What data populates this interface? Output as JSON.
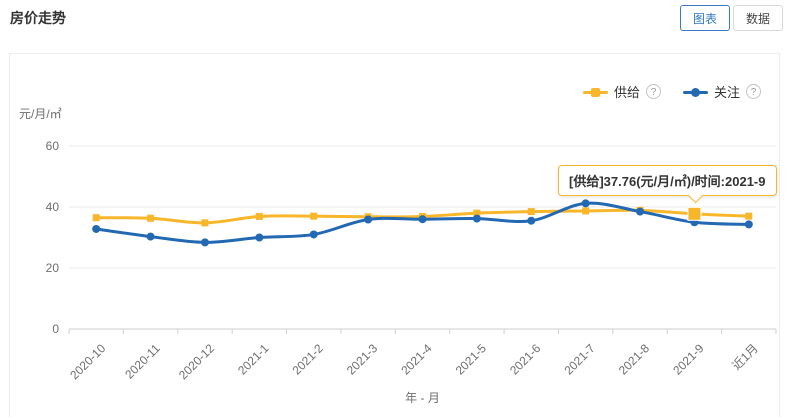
{
  "page": {
    "title": "房价走势"
  },
  "toolbar": {
    "chart_tab": "图表",
    "data_tab": "数据"
  },
  "legend": [
    {
      "label": "供给",
      "help_icon": "?",
      "color": "#f8b62b"
    },
    {
      "label": "关注",
      "help_icon": "?",
      "color": "#2268b2"
    }
  ],
  "tooltip": {
    "text": "[供给]37.76(元/月/㎡)/时间:2021-9"
  },
  "colors": {
    "supply": "#f8b62b",
    "attention": "#2268b2",
    "grid_line": "#e9e9e9",
    "axis_line": "#cfcfcf",
    "axis_text": "#6e6e6e",
    "active_tab": "#3178be"
  },
  "chart_data": {
    "type": "line",
    "title": "房价走势",
    "unit_label": "元/月/㎡",
    "xlabel": "年 - 月",
    "ylim": [
      0,
      60
    ],
    "yticks": [
      0,
      20,
      40,
      60
    ],
    "grid": true,
    "legend_position": "top-right",
    "categories": [
      "2020-10",
      "2020-11",
      "2020-12",
      "2021-1",
      "2021-2",
      "2021-3",
      "2021-4",
      "2021-5",
      "2021-6",
      "2021-7",
      "2021-8",
      "2021-9",
      "近1月"
    ],
    "series": [
      {
        "name": "供给",
        "color": "#f8b62b",
        "marker": "square",
        "values": [
          36.5,
          36.3,
          34.8,
          36.9,
          37.0,
          36.8,
          36.9,
          38.0,
          38.5,
          38.7,
          38.9,
          37.76,
          37.0
        ]
      },
      {
        "name": "关注",
        "color": "#2268b2",
        "marker": "circle",
        "values": [
          32.8,
          30.3,
          28.4,
          30.0,
          31.0,
          35.9,
          36.0,
          36.2,
          35.5,
          41.2,
          38.5,
          35.0,
          34.3
        ]
      }
    ],
    "highlight": {
      "series": "供给",
      "category": "2021-9",
      "value": 37.76
    }
  }
}
